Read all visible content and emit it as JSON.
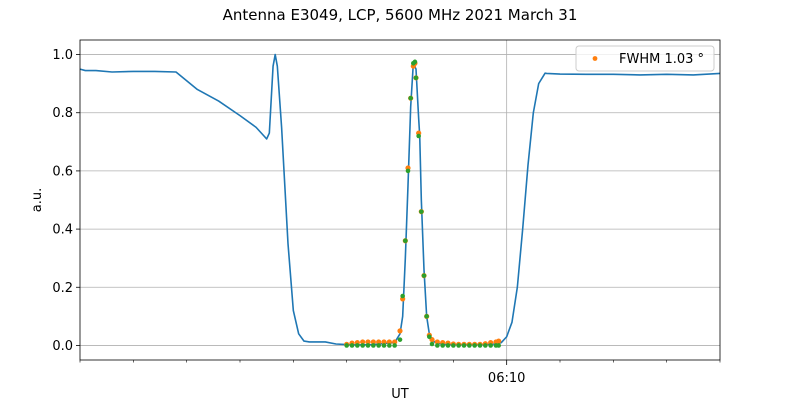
{
  "chart_data": {
    "type": "line",
    "title": "Antenna E3049, LCP, 5600 MHz 2021 March 31",
    "xlabel": "UT",
    "ylabel": "a.u.",
    "x_unit": "minutes",
    "xlim": [
      5.0,
      17.0
    ],
    "ylim": [
      -0.05,
      1.05
    ],
    "x_ticks": [
      {
        "value": 13.0,
        "label": "06:10"
      }
    ],
    "y_ticks": [
      {
        "value": 0.0,
        "label": "0.0"
      },
      {
        "value": 0.2,
        "label": "0.2"
      },
      {
        "value": 0.4,
        "label": "0.4"
      },
      {
        "value": 0.6,
        "label": "0.6"
      },
      {
        "value": 0.8,
        "label": "0.8"
      },
      {
        "value": 1.0,
        "label": "1.0"
      }
    ],
    "grid": true,
    "legend": {
      "position": "top-right",
      "label": "FWHM 1.03$^\\circ$",
      "display": "FWHM 1.03 °"
    },
    "colors": {
      "line": "#1f77b4",
      "orange": "#ff7f0e",
      "green": "#2ca02c"
    },
    "series": [
      {
        "kind": "line",
        "color": "#1f77b4",
        "x": [
          5.0,
          5.1,
          5.3,
          5.6,
          6.0,
          6.4,
          6.8,
          7.2,
          7.6,
          8.0,
          8.3,
          8.45,
          8.5,
          8.55,
          8.62,
          8.66,
          8.7,
          8.78,
          8.84,
          8.9,
          9.0,
          9.1,
          9.2,
          9.3,
          9.4,
          9.5,
          9.6,
          9.8,
          10.0,
          10.2,
          10.5,
          10.9,
          11.0,
          11.05,
          11.1,
          11.15,
          11.2,
          11.25,
          11.3,
          11.35,
          11.37,
          11.4,
          11.45,
          11.5,
          11.55,
          11.6,
          11.65,
          11.7,
          11.8,
          12.0,
          12.5,
          12.8,
          12.9,
          13.0,
          13.1,
          13.2,
          13.3,
          13.4,
          13.5,
          13.6,
          13.7,
          13.72,
          13.75,
          14.0,
          14.5,
          15.0,
          15.5,
          16.0,
          16.5,
          17.0
        ],
        "y": [
          0.95,
          0.945,
          0.945,
          0.94,
          0.942,
          0.942,
          0.94,
          0.88,
          0.84,
          0.79,
          0.75,
          0.72,
          0.71,
          0.73,
          0.96,
          1.0,
          0.96,
          0.75,
          0.55,
          0.35,
          0.12,
          0.04,
          0.015,
          0.012,
          0.012,
          0.012,
          0.012,
          0.005,
          0.003,
          0.002,
          0.003,
          0.01,
          0.04,
          0.1,
          0.3,
          0.55,
          0.82,
          0.97,
          0.95,
          0.78,
          0.72,
          0.5,
          0.26,
          0.1,
          0.04,
          0.02,
          0.012,
          0.008,
          0.004,
          0.003,
          0.003,
          0.005,
          0.01,
          0.03,
          0.08,
          0.2,
          0.4,
          0.62,
          0.8,
          0.9,
          0.93,
          0.936,
          0.935,
          0.933,
          0.932,
          0.932,
          0.93,
          0.932,
          0.93,
          0.935
        ]
      },
      {
        "kind": "points",
        "color": "#ff7f0e",
        "label": "FWHM 1.03 °",
        "x": [
          10.0,
          10.1,
          10.2,
          10.3,
          10.4,
          10.5,
          10.6,
          10.7,
          10.8,
          10.9,
          11.0,
          11.05,
          11.1,
          11.15,
          11.2,
          11.25,
          11.28,
          11.3,
          11.35,
          11.4,
          11.45,
          11.5,
          11.55,
          11.6,
          11.7,
          11.8,
          11.9,
          12.0,
          12.1,
          12.2,
          12.3,
          12.4,
          12.5,
          12.6,
          12.7,
          12.8,
          12.85
        ],
        "y": [
          0.004,
          0.008,
          0.01,
          0.012,
          0.012,
          0.012,
          0.012,
          0.012,
          0.012,
          0.012,
          0.05,
          0.16,
          0.36,
          0.61,
          0.85,
          0.96,
          0.97,
          0.92,
          0.73,
          0.46,
          0.24,
          0.1,
          0.035,
          0.02,
          0.012,
          0.01,
          0.008,
          0.005,
          0.004,
          0.004,
          0.004,
          0.004,
          0.004,
          0.006,
          0.01,
          0.012,
          0.015
        ]
      },
      {
        "kind": "points",
        "color": "#2ca02c",
        "x": [
          10.0,
          10.1,
          10.2,
          10.3,
          10.4,
          10.5,
          10.6,
          10.7,
          10.8,
          10.9,
          11.0,
          11.05,
          11.1,
          11.15,
          11.2,
          11.25,
          11.28,
          11.3,
          11.35,
          11.4,
          11.45,
          11.5,
          11.55,
          11.6,
          11.7,
          11.8,
          11.9,
          12.0,
          12.1,
          12.2,
          12.3,
          12.4,
          12.5,
          12.6,
          12.7,
          12.8,
          12.85
        ],
        "y": [
          0.0,
          0.0,
          0.0,
          0.0,
          0.0,
          0.0,
          0.0,
          0.0,
          0.0,
          0.0,
          0.02,
          0.17,
          0.36,
          0.6,
          0.85,
          0.97,
          0.975,
          0.92,
          0.72,
          0.46,
          0.24,
          0.1,
          0.03,
          0.005,
          0.0,
          0.0,
          0.0,
          0.0,
          0.0,
          0.0,
          0.0,
          0.0,
          0.0,
          0.0,
          0.0,
          0.0,
          0.0
        ]
      }
    ]
  }
}
